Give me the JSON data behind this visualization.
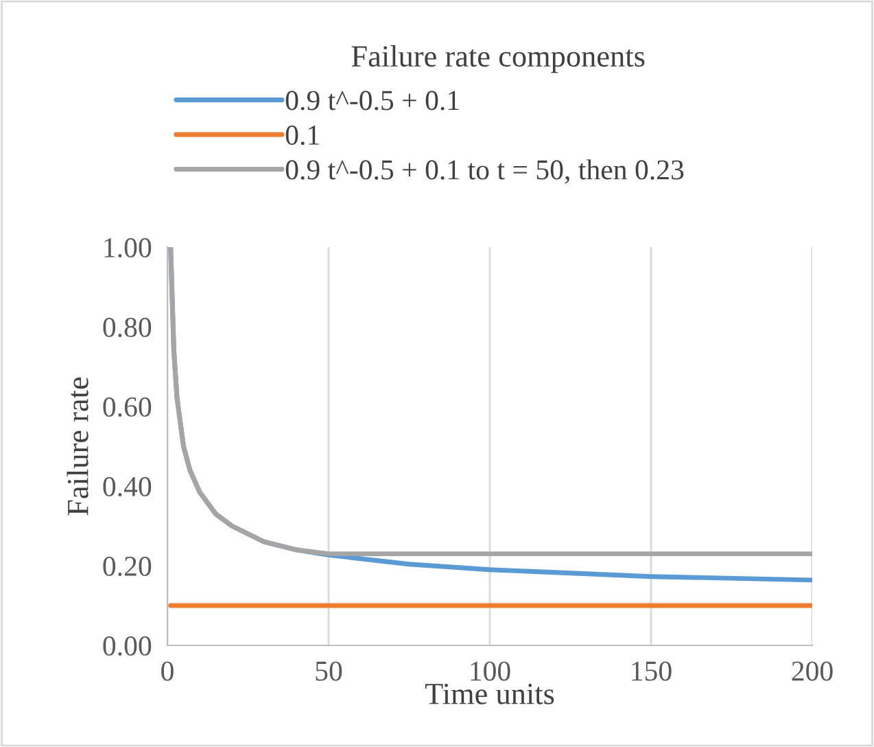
{
  "chart_data": {
    "type": "line",
    "title": "Failure rate components",
    "xlabel": "Time units",
    "ylabel": "Failure rate",
    "series": [
      {
        "name": "0.9 t^-0.5 + 0.1",
        "color": "#5b9bd5",
        "x": [
          1,
          2,
          3,
          5,
          7,
          10,
          15,
          20,
          30,
          40,
          50,
          75,
          100,
          150,
          200
        ],
        "values": [
          1.0,
          0.74,
          0.62,
          0.5,
          0.44,
          0.385,
          0.33,
          0.3,
          0.26,
          0.24,
          0.227,
          0.204,
          0.19,
          0.173,
          0.164
        ]
      },
      {
        "name": "0.1",
        "color": "#ed7d31",
        "x": [
          1,
          200
        ],
        "values": [
          0.1,
          0.1
        ]
      },
      {
        "name": "0.9 t^-0.5 + 0.1 to t = 50, then 0.23",
        "color": "#a5a5a5",
        "x": [
          1,
          2,
          3,
          5,
          7,
          10,
          15,
          20,
          30,
          40,
          50,
          200
        ],
        "values": [
          1.0,
          0.74,
          0.62,
          0.5,
          0.44,
          0.385,
          0.33,
          0.3,
          0.26,
          0.24,
          0.23,
          0.23
        ]
      }
    ],
    "xlim": [
      0,
      200
    ],
    "xticks": [
      0,
      50,
      100,
      150,
      200
    ],
    "ylim": [
      0,
      1
    ],
    "yticks": [
      {
        "value": 0,
        "label": "0.00"
      },
      {
        "value": 0.2,
        "label": "0.20"
      },
      {
        "value": 0.4,
        "label": "0.40"
      },
      {
        "value": 0.6,
        "label": "0.60"
      },
      {
        "value": 0.8,
        "label": "0.80"
      },
      {
        "value": 1,
        "label": "1.00"
      }
    ],
    "grid": "x",
    "legend": "top",
    "marker": "none",
    "line_style": "solid"
  }
}
